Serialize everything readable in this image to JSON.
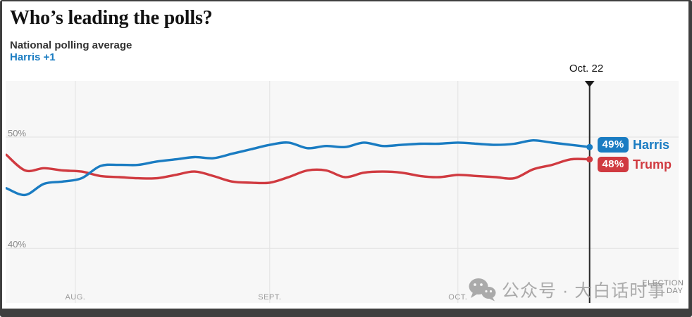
{
  "header": {
    "title": "Who’s leading the polls?",
    "subtitle": "National polling average",
    "lead": "Harris +1"
  },
  "watermark": {
    "icon": "wechat-icon",
    "text": "公众号 · 大白话时事"
  },
  "colors": {
    "harris_blue": "#1a7cc2",
    "trump_red": "#d03a40",
    "plot_background": "#f7f7f7",
    "gridline": "#e2e2e2",
    "marker_line": "#2a2a2a",
    "axis_text": "#9b9b9b"
  },
  "chart_data": {
    "type": "line",
    "title": "National polling average",
    "unit": "%",
    "grid": true,
    "ylim": [
      35,
      55
    ],
    "xlim_days": [
      0,
      107
    ],
    "legend_position": "right-of-last-point",
    "x_dates": [
      "July 21",
      "July 24",
      "July 27",
      "July 30",
      "Aug. 2",
      "Aug. 5",
      "Aug. 8",
      "Aug. 11",
      "Aug. 14",
      "Aug. 17",
      "Aug. 20",
      "Aug. 23",
      "Aug. 26",
      "Aug. 29",
      "Sept. 1",
      "Sept. 4",
      "Sept. 7",
      "Sept. 10",
      "Sept. 13",
      "Sept. 16",
      "Sept. 19",
      "Sept. 22",
      "Sept. 25",
      "Sept. 28",
      "Oct. 1",
      "Oct. 4",
      "Oct. 7",
      "Oct. 10",
      "Oct. 13",
      "Oct. 16",
      "Oct. 19",
      "Oct. 22"
    ],
    "days": [
      0,
      3,
      6,
      9,
      12,
      15,
      18,
      21,
      24,
      27,
      30,
      33,
      36,
      39,
      42,
      45,
      48,
      51,
      54,
      57,
      60,
      63,
      66,
      69,
      72,
      75,
      78,
      81,
      84,
      87,
      90,
      93
    ],
    "series": [
      {
        "name": "Harris",
        "color": "#1a7cc2",
        "end_label": "49%",
        "values": [
          45.4,
          44.8,
          45.8,
          46.0,
          46.3,
          47.4,
          47.5,
          47.5,
          47.8,
          48.0,
          48.2,
          48.1,
          48.5,
          48.9,
          49.3,
          49.5,
          49.0,
          49.2,
          49.1,
          49.5,
          49.2,
          49.3,
          49.4,
          49.4,
          49.5,
          49.4,
          49.3,
          49.4,
          49.7,
          49.5,
          49.3,
          49.1
        ]
      },
      {
        "name": "Trump",
        "color": "#d03a40",
        "end_label": "48%",
        "values": [
          48.4,
          47.0,
          47.2,
          47.0,
          46.9,
          46.5,
          46.4,
          46.3,
          46.3,
          46.6,
          46.9,
          46.5,
          46.0,
          45.9,
          45.9,
          46.4,
          47.0,
          47.0,
          46.4,
          46.8,
          46.9,
          46.8,
          46.5,
          46.4,
          46.6,
          46.5,
          46.4,
          46.3,
          47.1,
          47.5,
          48.0,
          48.0
        ]
      }
    ],
    "y_ticks": [
      {
        "label": "50%",
        "value": 50
      },
      {
        "label": "40%",
        "value": 40
      }
    ],
    "x_ticks": [
      {
        "label": "AUG.",
        "day": 11,
        "gridline": true
      },
      {
        "label": "SEPT.",
        "day": 42,
        "gridline": true
      },
      {
        "label": "OCT.",
        "day": 72,
        "gridline": true
      },
      {
        "label": "ELECTION DAY",
        "day": 107,
        "gridline": false
      }
    ],
    "marker": {
      "label": "Oct. 22",
      "day": 93
    }
  }
}
